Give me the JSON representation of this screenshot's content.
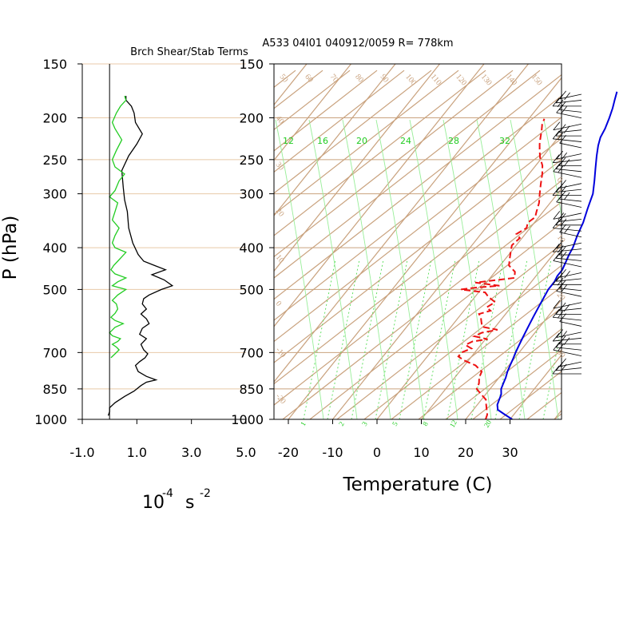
{
  "header": {
    "panel_title": "Brch Shear/Stab Terms",
    "sounding_title": "A533 04I01 040912/0059 R= 778km"
  },
  "chart_data": [
    {
      "type": "line",
      "title": "Brch Shear/Stab Terms",
      "ylabel": "P (hPa)",
      "xlabel_base": "10",
      "xlabel_exp1": "-4",
      "xlabel_unit": "s",
      "xlabel_exp2": "-2",
      "y_scale": "log",
      "ylim": [
        1000,
        150
      ],
      "xlim": [
        -1.0,
        5.0
      ],
      "x_ticks": [
        "-1.0",
        "1.0",
        "3.0",
        "5.0"
      ],
      "y_ticks": [
        "150",
        "200",
        "250",
        "300",
        "400",
        "500",
        "700",
        "850",
        "1000"
      ],
      "series": [
        {
          "color": "#000000",
          "points": [
            [
              -0.05,
              980
            ],
            [
              0.0,
              960
            ],
            [
              0.0,
              940
            ],
            [
              0.2,
              915
            ],
            [
              0.55,
              885
            ],
            [
              0.9,
              860
            ],
            [
              1.15,
              835
            ],
            [
              1.35,
              820
            ],
            [
              1.7,
              810
            ],
            [
              1.35,
              795
            ],
            [
              1.05,
              775
            ],
            [
              0.95,
              750
            ],
            [
              1.1,
              735
            ],
            [
              1.3,
              720
            ],
            [
              1.4,
              705
            ],
            [
              1.25,
              690
            ],
            [
              1.15,
              670
            ],
            [
              1.35,
              650
            ],
            [
              1.1,
              635
            ],
            [
              1.2,
              615
            ],
            [
              1.45,
              600
            ],
            [
              1.35,
              585
            ],
            [
              1.15,
              570
            ],
            [
              1.35,
              555
            ],
            [
              1.2,
              540
            ],
            [
              1.25,
              525
            ],
            [
              1.45,
              515
            ],
            [
              1.9,
              500
            ],
            [
              2.3,
              490
            ],
            [
              2.0,
              475
            ],
            [
              1.55,
              462
            ],
            [
              2.05,
              450
            ],
            [
              1.65,
              440
            ],
            [
              1.25,
              430
            ],
            [
              1.05,
              415
            ],
            [
              0.85,
              390
            ],
            [
              0.7,
              360
            ],
            [
              0.65,
              330
            ],
            [
              0.55,
              310
            ],
            [
              0.5,
              290
            ],
            [
              0.45,
              265
            ],
            [
              0.7,
              245
            ],
            [
              1.0,
              230
            ],
            [
              1.2,
              218
            ],
            [
              0.95,
              205
            ],
            [
              0.9,
              195
            ],
            [
              0.8,
              188
            ],
            [
              0.6,
              182
            ],
            [
              0.6,
              178
            ]
          ]
        },
        {
          "color": "#22cc22",
          "points": [
            [
              0.05,
              720
            ],
            [
              0.2,
              705
            ],
            [
              0.35,
              690
            ],
            [
              0.25,
              680
            ],
            [
              0.1,
              670
            ],
            [
              0.3,
              660
            ],
            [
              0.4,
              650
            ],
            [
              0.1,
              640
            ],
            [
              0.0,
              630
            ],
            [
              0.2,
              612
            ],
            [
              0.5,
              600
            ],
            [
              0.2,
              590
            ],
            [
              0.05,
              580
            ],
            [
              0.2,
              568
            ],
            [
              0.3,
              555
            ],
            [
              0.25,
              540
            ],
            [
              0.1,
              530
            ],
            [
              0.3,
              515
            ],
            [
              0.6,
              500
            ],
            [
              0.1,
              490
            ],
            [
              0.3,
              480
            ],
            [
              0.6,
              470
            ],
            [
              0.2,
              460
            ],
            [
              0.05,
              450
            ],
            [
              0.15,
              440
            ],
            [
              0.3,
              430
            ],
            [
              0.6,
              410
            ],
            [
              0.2,
              400
            ],
            [
              0.1,
              390
            ],
            [
              0.2,
              375
            ],
            [
              0.35,
              360
            ],
            [
              0.1,
              345
            ],
            [
              0.2,
              330
            ],
            [
              0.3,
              315
            ],
            [
              0.0,
              305
            ],
            [
              0.2,
              295
            ],
            [
              0.35,
              280
            ],
            [
              0.55,
              270
            ],
            [
              0.2,
              260
            ],
            [
              0.1,
              250
            ],
            [
              0.25,
              238
            ],
            [
              0.45,
              225
            ],
            [
              0.2,
              212
            ],
            [
              0.1,
              205
            ],
            [
              0.25,
              195
            ],
            [
              0.4,
              188
            ],
            [
              0.6,
              182
            ],
            [
              0.55,
              178
            ]
          ]
        }
      ]
    },
    {
      "type": "line",
      "title": "A533 04I01 040912/0059 R= 778km",
      "xlabel": "Temperature (C)",
      "ylabel": "",
      "y_scale": "log",
      "ylim": [
        1000,
        150
      ],
      "xlim": [
        -23,
        42
      ],
      "x_ticks": [
        "-20",
        "-10",
        "0",
        "10",
        "20",
        "30"
      ],
      "y_ticks": [
        "150",
        "200",
        "250",
        "300",
        "400",
        "500",
        "700",
        "850",
        "1000"
      ],
      "mixing_ratio_labels_upper": [
        "12",
        "16",
        "20",
        "24",
        "28",
        "32"
      ],
      "mixing_ratio_labels_lower": [
        "1",
        "2",
        "3",
        "5",
        "8",
        "12",
        "20"
      ],
      "theta_labels_top": [
        "50",
        "60",
        "70",
        "80",
        "90",
        "100",
        "110",
        "120",
        "130",
        "140",
        "150"
      ],
      "theta_labels_left": [
        "40",
        "30",
        "20",
        "10",
        "0",
        "-10",
        "-20"
      ],
      "theta_labels_right": [
        "0",
        "10",
        "20",
        "30"
      ],
      "series": [
        {
          "name": "Temperature",
          "color": "#0000dd",
          "style": "solid",
          "points": [
            [
              30.5,
              1000
            ],
            [
              28,
              975
            ],
            [
              25.5,
              950
            ],
            [
              24.5,
              925
            ],
            [
              24,
              900
            ],
            [
              23.5,
              875
            ],
            [
              22.5,
              850
            ],
            [
              22,
              825
            ],
            [
              21.5,
              800
            ],
            [
              20.8,
              775
            ],
            [
              20.3,
              750
            ],
            [
              19.8,
              725
            ],
            [
              19.2,
              700
            ],
            [
              18.7,
              675
            ],
            [
              18.2,
              650
            ],
            [
              17.7,
              625
            ],
            [
              17.2,
              600
            ],
            [
              16.7,
              575
            ],
            [
              16.2,
              550
            ],
            [
              15.7,
              525
            ],
            [
              15.2,
              500
            ],
            [
              15.2,
              480
            ],
            [
              14.8,
              465
            ],
            [
              14.8,
              450
            ],
            [
              14.3,
              435
            ],
            [
              13.6,
              415
            ],
            [
              13.2,
              400
            ],
            [
              12,
              375
            ],
            [
              11,
              350
            ],
            [
              9.5,
              325
            ],
            [
              8,
              300
            ],
            [
              6,
              280
            ],
            [
              4,
              262
            ],
            [
              2,
              245
            ],
            [
              0.5,
              232
            ],
            [
              -0.5,
              222
            ],
            [
              -1,
              212
            ],
            [
              -2,
              200
            ],
            [
              -3,
              190
            ],
            [
              -4,
              182
            ],
            [
              -5,
              174
            ]
          ]
        },
        {
          "name": "Dewpoint",
          "color": "#ee1111",
          "style": "dashed",
          "points": [
            [
              24.5,
              1000
            ],
            [
              24,
              975
            ],
            [
              23,
              950
            ],
            [
              22,
              925
            ],
            [
              21,
              900
            ],
            [
              19,
              875
            ],
            [
              17,
              850
            ],
            [
              16.5,
              825
            ],
            [
              15.5,
              800
            ],
            [
              15,
              775
            ],
            [
              12.5,
              750
            ],
            [
              9,
              730
            ],
            [
              7,
              715
            ],
            [
              7,
              700
            ],
            [
              8.5,
              685
            ],
            [
              6.5,
              672
            ],
            [
              7.5,
              660
            ],
            [
              10.5,
              652
            ],
            [
              7,
              642
            ],
            [
              8,
              630
            ],
            [
              11,
              620
            ],
            [
              7,
              610
            ],
            [
              6,
              595
            ],
            [
              5,
              580
            ],
            [
              4,
              570
            ],
            [
              6,
              560
            ],
            [
              4.5,
              550
            ],
            [
              5.5,
              535
            ],
            [
              3,
              520
            ],
            [
              1.5,
              508
            ],
            [
              -4.5,
              500
            ],
            [
              -1.5,
              495
            ],
            [
              3.5,
              490
            ],
            [
              -2.5,
              482
            ],
            [
              5.5,
              470
            ],
            [
              4.5,
              455
            ],
            [
              2,
              440
            ],
            [
              1,
              425
            ],
            [
              0,
              410
            ],
            [
              -1,
              395
            ],
            [
              -0.5,
              380
            ],
            [
              -2,
              372
            ],
            [
              -0.8,
              360
            ],
            [
              -1.5,
              350
            ],
            [
              -0.8,
              340
            ],
            [
              -1.5,
              330
            ],
            [
              -2.5,
              315
            ],
            [
              -4,
              300
            ],
            [
              -5.5,
              285
            ],
            [
              -7,
              270
            ],
            [
              -8.5,
              258
            ],
            [
              -10.5,
              247
            ],
            [
              -12,
              237
            ],
            [
              -13,
              230
            ],
            [
              -14,
              222
            ],
            [
              -15,
              214
            ],
            [
              -16,
              207
            ],
            [
              -16.5,
              201
            ]
          ]
        }
      ],
      "wind_barb_count": 48
    }
  ]
}
